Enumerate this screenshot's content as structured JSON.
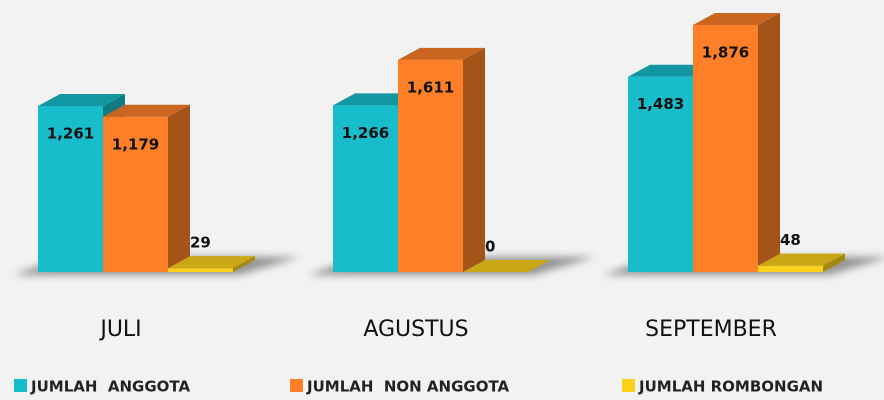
{
  "chart_data": {
    "type": "bar3d",
    "categories": [
      "JULI",
      "AGUSTUS",
      "SEPTEMBER"
    ],
    "series": [
      {
        "name": "JUMLAH  ANGGOTA",
        "color": "#17bdca",
        "values": [
          1261,
          1266,
          1483
        ],
        "value_labels": [
          "1,261",
          "1,266",
          "1,483"
        ]
      },
      {
        "name": "JUMLAH  NON ANGGOTA",
        "color": "#fd7f27",
        "values": [
          1179,
          1611,
          1876
        ],
        "value_labels": [
          "1,179",
          "1,611",
          "1,876"
        ]
      },
      {
        "name": "JUMLAH ROMBONGAN",
        "color": "#fbd11b",
        "values": [
          29,
          0,
          48
        ],
        "value_labels": [
          "29",
          "0",
          "48"
        ]
      }
    ]
  }
}
